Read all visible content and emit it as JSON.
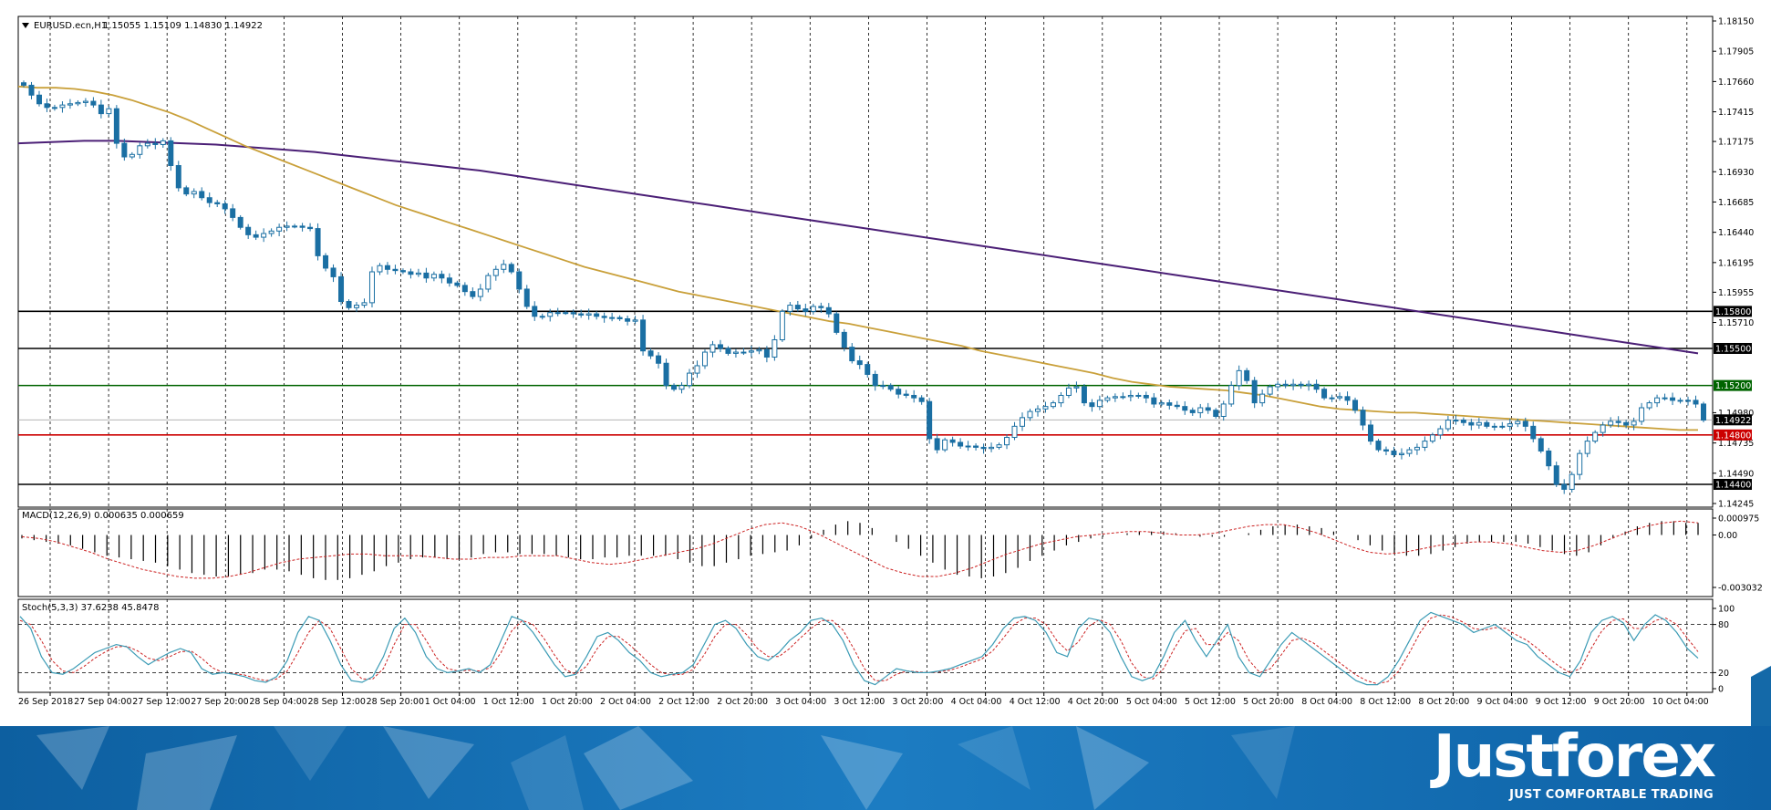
{
  "symbol_header": {
    "title": "EURUSD.ecn,H1",
    "ohlc": "1.15055 1.15109 1.14830 1.14922"
  },
  "chart_data": [
    {
      "type": "candlestick",
      "title": "EURUSD.ecn,H1",
      "price_axis_ticks": [
        "1.18150",
        "1.17905",
        "1.17660",
        "1.17415",
        "1.17175",
        "1.16930",
        "1.16685",
        "1.16440",
        "1.16195",
        "1.15955",
        "1.15710",
        "1.14980",
        "1.14735",
        "1.14490",
        "1.14245"
      ],
      "ylim": [
        1.14245,
        1.1815
      ],
      "horizontal_levels": [
        {
          "label": "1.15800",
          "value": 1.158,
          "color": "#000000"
        },
        {
          "label": "1.15500",
          "value": 1.155,
          "color": "#000000"
        },
        {
          "label": "1.15200",
          "value": 1.152,
          "color": "#006400"
        },
        {
          "label": "1.14800",
          "value": 1.148,
          "color": "#cc0000"
        },
        {
          "label": "1.14400",
          "value": 1.144,
          "color": "#000000"
        }
      ],
      "current_price": {
        "label": "1.14922",
        "value": 1.14922
      },
      "close_series": [
        1.1763,
        1.1755,
        1.1748,
        1.1745,
        1.1745,
        1.1747,
        1.1748,
        1.1749,
        1.175,
        1.1747,
        1.174,
        1.1744,
        1.1716,
        1.1705,
        1.1707,
        1.1714,
        1.1716,
        1.1715,
        1.1718,
        1.1698,
        1.168,
        1.1675,
        1.1677,
        1.1672,
        1.1668,
        1.1667,
        1.1663,
        1.1656,
        1.1648,
        1.1642,
        1.164,
        1.1643,
        1.1645,
        1.1648,
        1.1649,
        1.1649,
        1.1648,
        1.1647,
        1.1625,
        1.1615,
        1.1608,
        1.1588,
        1.1583,
        1.1585,
        1.1587,
        1.1612,
        1.1617,
        1.1614,
        1.1613,
        1.1612,
        1.161,
        1.1611,
        1.1607,
        1.161,
        1.1607,
        1.1603,
        1.1601,
        1.1596,
        1.1592,
        1.1598,
        1.1609,
        1.1614,
        1.1618,
        1.1612,
        1.1598,
        1.1584,
        1.1576,
        1.1576,
        1.1579,
        1.1579,
        1.1579,
        1.1578,
        1.1577,
        1.1578,
        1.1576,
        1.1575,
        1.1575,
        1.1574,
        1.1572,
        1.1573,
        1.1548,
        1.1544,
        1.1538,
        1.152,
        1.1517,
        1.152,
        1.153,
        1.1536,
        1.1547,
        1.1553,
        1.155,
        1.1546,
        1.1547,
        1.1547,
        1.1548,
        1.1549,
        1.1543,
        1.1557,
        1.158,
        1.1585,
        1.1582,
        1.158,
        1.1584,
        1.1583,
        1.1578,
        1.1563,
        1.1551,
        1.154,
        1.1537,
        1.1529,
        1.152,
        1.152,
        1.1517,
        1.1513,
        1.1512,
        1.151,
        1.1507,
        1.1477,
        1.1468,
        1.1476,
        1.1474,
        1.1471,
        1.1471,
        1.147,
        1.1469,
        1.147,
        1.1472,
        1.1478,
        1.1487,
        1.1494,
        1.1499,
        1.1501,
        1.1503,
        1.1506,
        1.1512,
        1.1518,
        1.1519,
        1.1506,
        1.1503,
        1.1508,
        1.151,
        1.1511,
        1.1511,
        1.1512,
        1.1512,
        1.151,
        1.1505,
        1.1506,
        1.1504,
        1.1503,
        1.15,
        1.1498,
        1.1502,
        1.15,
        1.1495,
        1.1505,
        1.152,
        1.1532,
        1.1524,
        1.1506,
        1.1513,
        1.1519,
        1.1521,
        1.152,
        1.1521,
        1.152,
        1.1521,
        1.1517,
        1.151,
        1.151,
        1.1511,
        1.1508,
        1.15,
        1.1488,
        1.1475,
        1.1468,
        1.1467,
        1.1464,
        1.1465,
        1.1468,
        1.147,
        1.1475,
        1.148,
        1.1485,
        1.1492,
        1.1492,
        1.149,
        1.1488,
        1.149,
        1.1487,
        1.1487,
        1.1487,
        1.1489,
        1.1491,
        1.1487,
        1.1477,
        1.1467,
        1.1455,
        1.144,
        1.1436,
        1.1448,
        1.1465,
        1.1475,
        1.1482,
        1.1488,
        1.1491,
        1.149,
        1.1488,
        1.1491,
        1.1502,
        1.1506,
        1.151,
        1.151,
        1.1508,
        1.1508,
        1.1508,
        1.1505,
        1.1492
      ],
      "ma_fast": [
        1.1762,
        1.1761,
        1.1761,
        1.176,
        1.1758,
        1.1755,
        1.1751,
        1.1746,
        1.1741,
        1.1735,
        1.1728,
        1.1721,
        1.1714,
        1.1708,
        1.1702,
        1.1696,
        1.169,
        1.1684,
        1.1678,
        1.1672,
        1.1666,
        1.1661,
        1.1656,
        1.1651,
        1.1646,
        1.1641,
        1.1636,
        1.1631,
        1.1626,
        1.1621,
        1.1616,
        1.1612,
        1.1608,
        1.1604,
        1.16,
        1.1596,
        1.1593,
        1.159,
        1.1587,
        1.1584,
        1.1581,
        1.1578,
        1.1575,
        1.1572,
        1.157,
        1.1567,
        1.1564,
        1.1561,
        1.1558,
        1.1555,
        1.1552,
        1.1548,
        1.1545,
        1.1542,
        1.1539,
        1.1536,
        1.1533,
        1.153,
        1.1526,
        1.1523,
        1.1521,
        1.1519,
        1.1518,
        1.1517,
        1.1516,
        1.1514,
        1.1512,
        1.1509,
        1.1506,
        1.1503,
        1.1501,
        1.15,
        1.1499,
        1.1498,
        1.1498,
        1.1497,
        1.1496,
        1.1495,
        1.1494,
        1.1493,
        1.1492,
        1.1491,
        1.149,
        1.1489,
        1.1488,
        1.1487,
        1.1486,
        1.1485,
        1.1484,
        1.1484
      ],
      "ma_slow": [
        1.1716,
        1.1717,
        1.1718,
        1.1718,
        1.1717,
        1.1716,
        1.1715,
        1.1713,
        1.1711,
        1.1709,
        1.1706,
        1.1703,
        1.17,
        1.1697,
        1.1694,
        1.169,
        1.1686,
        1.1682,
        1.1678,
        1.1674,
        1.167,
        1.1666,
        1.1662,
        1.1658,
        1.1654,
        1.165,
        1.1646,
        1.1642,
        1.1638,
        1.1634,
        1.163,
        1.1626,
        1.1622,
        1.1618,
        1.1614,
        1.161,
        1.1606,
        1.1602,
        1.1598,
        1.1594,
        1.159,
        1.1586,
        1.1582,
        1.1578,
        1.1574,
        1.157,
        1.1566,
        1.1562,
        1.1558,
        1.1554,
        1.155,
        1.1546
      ],
      "time_labels": [
        "26 Sep 2018",
        "27 Sep 04:00",
        "27 Sep 12:00",
        "27 Sep 20:00",
        "28 Sep 04:00",
        "28 Sep 12:00",
        "28 Sep 20:00",
        "1 Oct 04:00",
        "1 Oct 12:00",
        "1 Oct 20:00",
        "2 Oct 04:00",
        "2 Oct 12:00",
        "2 Oct 20:00",
        "3 Oct 04:00",
        "3 Oct 12:00",
        "3 Oct 20:00",
        "4 Oct 04:00",
        "4 Oct 12:00",
        "4 Oct 20:00",
        "5 Oct 04:00",
        "5 Oct 12:00",
        "5 Oct 20:00",
        "8 Oct 04:00",
        "8 Oct 12:00",
        "8 Oct 20:00",
        "9 Oct 04:00",
        "9 Oct 12:00",
        "9 Oct 20:00",
        "10 Oct 04:00"
      ]
    },
    {
      "type": "histogram",
      "title": "MACD(12,26,9) 0.000635 0.000659",
      "axis_ticks": [
        "0.000975",
        "0.00",
        "-0.003032"
      ],
      "ylim": [
        -0.003032,
        0.000975
      ],
      "hist": [
        -0.0002,
        -0.0003,
        -0.0004,
        -0.0005,
        -0.0006,
        -0.0008,
        -0.001,
        -0.0012,
        -0.0013,
        -0.0014,
        -0.0015,
        -0.0016,
        -0.0018,
        -0.002,
        -0.0022,
        -0.0023,
        -0.0024,
        -0.0024,
        -0.0023,
        -0.0022,
        -0.002,
        -0.002,
        -0.0021,
        -0.0023,
        -0.0025,
        -0.0026,
        -0.0026,
        -0.0025,
        -0.0023,
        -0.0021,
        -0.0018,
        -0.0016,
        -0.0014,
        -0.0013,
        -0.0013,
        -0.0014,
        -0.0014,
        -0.0013,
        -0.0011,
        -0.001,
        -0.001,
        -0.0011,
        -0.0011,
        -0.0011,
        -0.0012,
        -0.0013,
        -0.0014,
        -0.0014,
        -0.0013,
        -0.0013,
        -0.0012,
        -0.0012,
        -0.0012,
        -0.0012,
        -0.0014,
        -0.0016,
        -0.0018,
        -0.0018,
        -0.0016,
        -0.0014,
        -0.0012,
        -0.0011,
        -0.001,
        -0.0009,
        -0.0006,
        -0.0002,
        0.0003,
        0.0006,
        0.0008,
        0.0007,
        0.0004,
        0.0,
        -0.0004,
        -0.0008,
        -0.0012,
        -0.0016,
        -0.002,
        -0.0023,
        -0.0024,
        -0.0025,
        -0.0024,
        -0.0022,
        -0.0019,
        -0.0015,
        -0.0012,
        -0.0009,
        -0.0006,
        -0.0004,
        -0.0002,
        -0.0001,
        0.0,
        0.0001,
        0.0002,
        0.0002,
        0.0002,
        0.0001,
        0.0,
        -0.0001,
        -0.0001,
        -0.0001,
        0.0,
        0.0001,
        0.0003,
        0.0005,
        0.0006,
        0.0006,
        0.0005,
        0.0004,
        0.0002,
        0.0,
        -0.0003,
        -0.0006,
        -0.0009,
        -0.0011,
        -0.0012,
        -0.0012,
        -0.0011,
        -0.0009,
        -0.0007,
        -0.0005,
        -0.0004,
        -0.0004,
        -0.0004,
        -0.0004,
        -0.0005,
        -0.0007,
        -0.0009,
        -0.0011,
        -0.0012,
        -0.001,
        -0.0006,
        -0.0002,
        0.0002,
        0.0005,
        0.0007,
        0.0008,
        0.0008,
        0.0007,
        0.0007
      ],
      "signal": [
        -0.0001,
        -0.0002,
        -0.0004,
        -0.0007,
        -0.001,
        -0.0014,
        -0.0017,
        -0.002,
        -0.0022,
        -0.0024,
        -0.0025,
        -0.0025,
        -0.0024,
        -0.0022,
        -0.0019,
        -0.0016,
        -0.0014,
        -0.0013,
        -0.0012,
        -0.0011,
        -0.0011,
        -0.0012,
        -0.0012,
        -0.0012,
        -0.0013,
        -0.0014,
        -0.0014,
        -0.0013,
        -0.0013,
        -0.0012,
        -0.0012,
        -0.0012,
        -0.0014,
        -0.0016,
        -0.0017,
        -0.0016,
        -0.0014,
        -0.0012,
        -0.001,
        -0.0008,
        -0.0005,
        -0.0001,
        0.0003,
        0.0006,
        0.0007,
        0.0005,
        0.0001,
        -0.0004,
        -0.0009,
        -0.0014,
        -0.0019,
        -0.0022,
        -0.0024,
        -0.0024,
        -0.0022,
        -0.0019,
        -0.0015,
        -0.0011,
        -0.0008,
        -0.0005,
        -0.0003,
        -0.0001,
        0.0,
        0.0001,
        0.0002,
        0.0002,
        0.0001,
        0.0,
        0.0,
        0.0001,
        0.0003,
        0.0005,
        0.0006,
        0.0006,
        0.0004,
        0.0001,
        -0.0003,
        -0.0007,
        -0.001,
        -0.0011,
        -0.001,
        -0.0008,
        -0.0006,
        -0.0005,
        -0.0004,
        -0.0004,
        -0.0005,
        -0.0007,
        -0.0009,
        -0.001,
        -0.0009,
        -0.0006,
        -0.0002,
        0.0002,
        0.0005,
        0.0007,
        0.0008,
        0.0007
      ]
    },
    {
      "type": "line",
      "title": "Stoch(5,3,3) 37.6238 45.8478",
      "axis_ticks": [
        "100",
        "80",
        "20",
        "0"
      ],
      "levels": [
        80,
        20
      ],
      "ylim": [
        0,
        100
      ],
      "main": [
        90,
        75,
        40,
        20,
        18,
        25,
        35,
        45,
        50,
        55,
        52,
        40,
        30,
        38,
        45,
        50,
        45,
        25,
        18,
        20,
        18,
        15,
        10,
        8,
        15,
        35,
        70,
        90,
        85,
        60,
        30,
        10,
        8,
        15,
        40,
        75,
        88,
        70,
        40,
        25,
        20,
        22,
        25,
        20,
        30,
        60,
        90,
        85,
        70,
        50,
        30,
        15,
        18,
        40,
        65,
        70,
        60,
        45,
        35,
        20,
        15,
        18,
        20,
        30,
        55,
        80,
        85,
        75,
        55,
        40,
        35,
        45,
        60,
        70,
        85,
        88,
        80,
        60,
        30,
        10,
        5,
        15,
        25,
        22,
        20,
        20,
        22,
        25,
        30,
        35,
        40,
        55,
        75,
        88,
        90,
        85,
        70,
        45,
        40,
        75,
        88,
        85,
        70,
        40,
        15,
        10,
        15,
        40,
        70,
        85,
        60,
        40,
        60,
        80,
        40,
        20,
        15,
        35,
        55,
        70,
        60,
        50,
        40,
        30,
        20,
        10,
        5,
        5,
        15,
        35,
        60,
        85,
        95,
        90,
        85,
        80,
        70,
        75,
        80,
        70,
        60,
        55,
        40,
        30,
        20,
        15,
        35,
        70,
        85,
        90,
        82,
        60,
        80,
        92,
        85,
        70,
        50,
        38
      ],
      "signal": [
        85,
        80,
        60,
        35,
        22,
        20,
        28,
        38,
        46,
        52,
        53,
        47,
        38,
        35,
        40,
        46,
        47,
        38,
        26,
        20,
        19,
        17,
        13,
        10,
        12,
        22,
        45,
        70,
        85,
        75,
        50,
        25,
        12,
        12,
        25,
        55,
        80,
        80,
        60,
        38,
        25,
        22,
        23,
        22,
        26,
        45,
        72,
        85,
        80,
        63,
        42,
        24,
        18,
        28,
        50,
        65,
        65,
        55,
        43,
        30,
        20,
        17,
        18,
        24,
        42,
        65,
        80,
        80,
        67,
        50,
        40,
        40,
        50,
        63,
        75,
        85,
        85,
        73,
        50,
        25,
        10,
        10,
        18,
        22,
        21,
        20,
        21,
        23,
        27,
        32,
        37,
        47,
        63,
        80,
        88,
        88,
        80,
        60,
        47,
        58,
        78,
        86,
        80,
        60,
        32,
        15,
        12,
        25,
        50,
        72,
        75,
        55,
        55,
        70,
        60,
        35,
        20,
        25,
        42,
        60,
        63,
        57,
        47,
        37,
        27,
        17,
        10,
        6,
        9,
        22,
        45,
        70,
        88,
        92,
        89,
        83,
        75,
        73,
        76,
        75,
        67,
        60,
        50,
        38,
        28,
        20,
        25,
        50,
        72,
        85,
        87,
        75,
        75,
        85,
        88,
        80,
        63,
        46
      ]
    }
  ],
  "watermark": {
    "brand": "Justforex",
    "tagline": "JUST COMFORTABLE TRADING",
    "color": "#1469a8"
  },
  "colors": {
    "bull_candle": "#1a6fa3",
    "bear_candle": "#1a6fa3",
    "ma_fast": "#c9a03a",
    "ma_slow": "#4b1f76",
    "stoch_main": "#3b9bb5",
    "stoch_signal": "#cc2222",
    "macd_signal": "#cc2222",
    "grid": "#000000"
  }
}
